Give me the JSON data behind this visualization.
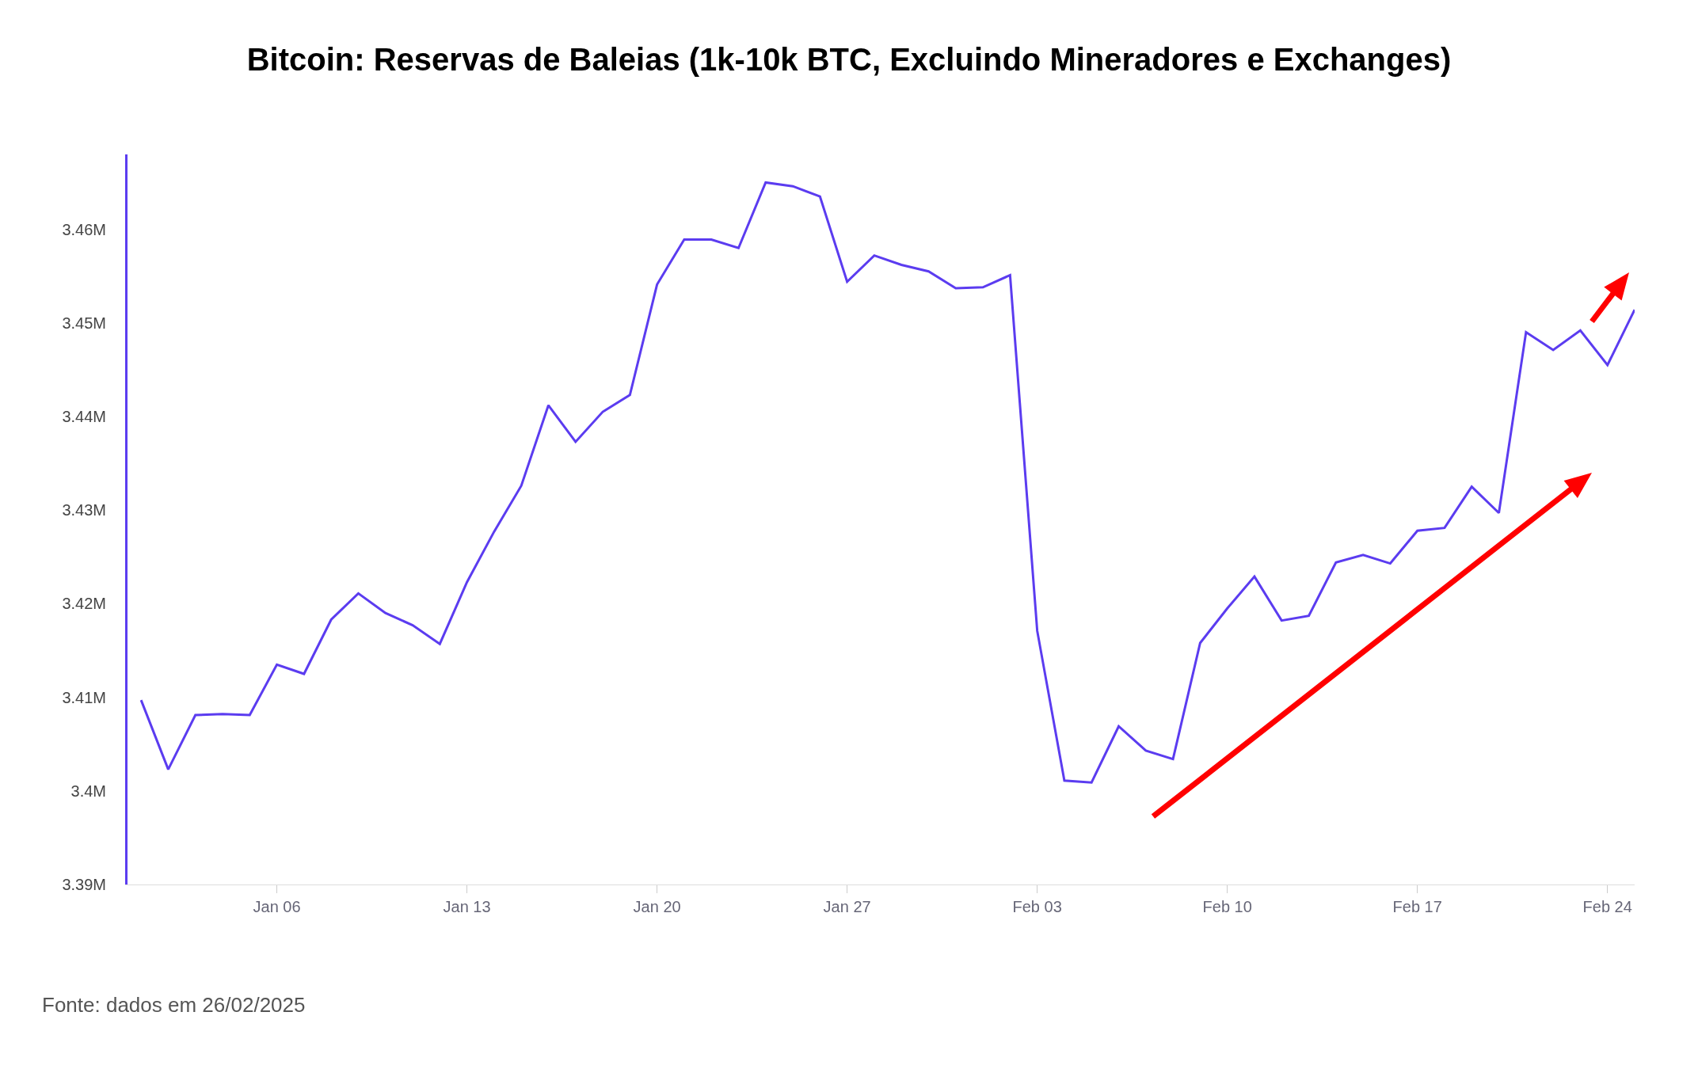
{
  "chart_data": {
    "type": "line",
    "title": "Bitcoin: Reservas de Baleias (1k-10k BTC, Excluindo Mineradores e Exchanges)",
    "x": [
      "2025-01-01",
      "2025-01-02",
      "2025-01-03",
      "2025-01-04",
      "2025-01-05",
      "2025-01-06",
      "2025-01-07",
      "2025-01-08",
      "2025-01-09",
      "2025-01-10",
      "2025-01-11",
      "2025-01-12",
      "2025-01-13",
      "2025-01-14",
      "2025-01-15",
      "2025-01-16",
      "2025-01-17",
      "2025-01-18",
      "2025-01-19",
      "2025-01-20",
      "2025-01-21",
      "2025-01-22",
      "2025-01-23",
      "2025-01-24",
      "2025-01-25",
      "2025-01-26",
      "2025-01-27",
      "2025-01-28",
      "2025-01-29",
      "2025-01-30",
      "2025-01-31",
      "2025-02-01",
      "2025-02-02",
      "2025-02-03",
      "2025-02-04",
      "2025-02-05",
      "2025-02-06",
      "2025-02-07",
      "2025-02-08",
      "2025-02-09",
      "2025-02-10",
      "2025-02-11",
      "2025-02-12",
      "2025-02-13",
      "2025-02-14",
      "2025-02-15",
      "2025-02-16",
      "2025-02-17",
      "2025-02-18",
      "2025-02-19",
      "2025-02-20",
      "2025-02-21",
      "2025-02-22",
      "2025-02-23",
      "2025-02-24",
      "2025-02-25"
    ],
    "series": [
      {
        "color": "#5b3cf0",
        "values": [
          3.4097,
          3.4023,
          3.4081,
          3.4082,
          3.4081,
          3.4135,
          3.4125,
          3.4183,
          3.4211,
          3.419,
          3.4177,
          3.4157,
          3.4223,
          3.4277,
          3.4326,
          3.4412,
          3.4373,
          3.4405,
          3.4423,
          3.4541,
          3.4589,
          3.4589,
          3.458,
          3.465,
          3.4646,
          3.4635,
          3.4544,
          3.4572,
          3.4562,
          3.4555,
          3.4537,
          3.4538,
          3.4551,
          3.4171,
          3.4011,
          3.4009,
          3.4069,
          3.4043,
          3.4034,
          3.4158,
          3.4195,
          3.4229,
          3.4182,
          3.4187,
          3.4244,
          3.4252,
          3.4243,
          3.4278,
          3.4281,
          3.4325,
          3.4297,
          3.449,
          3.4471,
          3.4492,
          3.4455,
          3.4514
        ]
      }
    ],
    "xlim": [
      "2024-12-31T12:00",
      "2025-02-25"
    ],
    "xticks": [
      {
        "value": "2025-01-06",
        "label": "Jan 06"
      },
      {
        "value": "2025-01-13",
        "label": "Jan 13"
      },
      {
        "value": "2025-01-20",
        "label": "Jan 20"
      },
      {
        "value": "2025-01-27",
        "label": "Jan 27"
      },
      {
        "value": "2025-02-03",
        "label": "Feb 03"
      },
      {
        "value": "2025-02-10",
        "label": "Feb 10"
      },
      {
        "value": "2025-02-17",
        "label": "Feb 17"
      },
      {
        "value": "2025-02-24",
        "label": "Feb 24"
      }
    ],
    "ylim": [
      3.39,
      3.468
    ],
    "yticks": [
      {
        "value": 3.39,
        "label": "3.39M"
      },
      {
        "value": 3.4,
        "label": "3.4M"
      },
      {
        "value": 3.41,
        "label": "3.41M"
      },
      {
        "value": 3.42,
        "label": "3.42M"
      },
      {
        "value": 3.43,
        "label": "3.43M"
      },
      {
        "value": 3.44,
        "label": "3.44M"
      },
      {
        "value": 3.45,
        "label": "3.45M"
      },
      {
        "value": 3.46,
        "label": "3.46M"
      }
    ],
    "annotations": [
      "Fonte: dados em 26/02/2025"
    ],
    "marker": "none",
    "line_style": "solid"
  }
}
